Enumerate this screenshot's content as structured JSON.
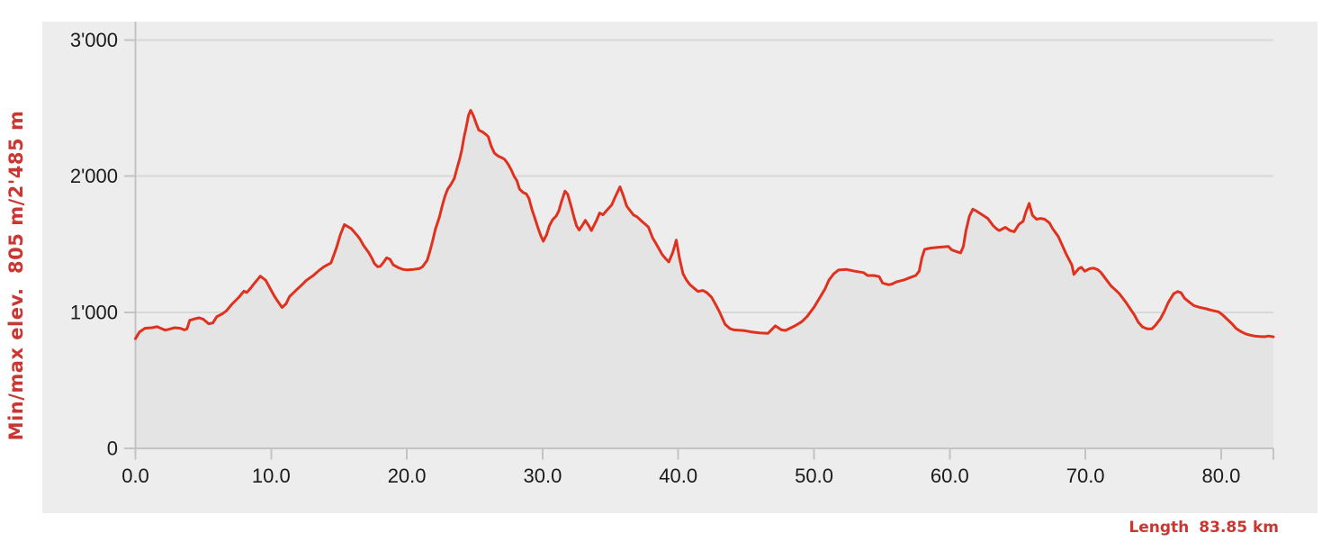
{
  "chart_data": {
    "type": "area",
    "title": "",
    "xlabel": "",
    "ylabel": "Min/max elev.  805 m/2'485 m",
    "footer": {
      "label": "Length",
      "value": "83.85 km"
    },
    "xlim": [
      0,
      83.85
    ],
    "ylim": [
      0,
      3000
    ],
    "grid": "horizontal",
    "legend": "none",
    "x_ticks": {
      "values": [
        0,
        10,
        20,
        30,
        40,
        50,
        60,
        70,
        80
      ],
      "labels": [
        "0.0",
        "10.0",
        "20.0",
        "30.0",
        "40.0",
        "50.0",
        "60.0",
        "70.0",
        "80.0"
      ]
    },
    "y_ticks": {
      "values": [
        0,
        1000,
        2000,
        3000
      ],
      "labels": [
        "0",
        "1'000",
        "2'000",
        "3'000"
      ]
    },
    "min_elevation_m": 805,
    "max_elevation_m": 2485,
    "length_km": 83.85,
    "colors": {
      "line": "#e0311f",
      "fill": "#e4e4e4",
      "panel": "#ededed",
      "grid": "#d8d8d8",
      "axis": "#c3c3c3",
      "tick_text": "#1b1b1b",
      "accent_text": "#cc3632"
    },
    "series_name": "elevation-profile",
    "points": [
      [
        0,
        805
      ],
      [
        0.3,
        855
      ],
      [
        0.7,
        882
      ],
      [
        1.2,
        886
      ],
      [
        1.6,
        893
      ],
      [
        1.9,
        880
      ],
      [
        2.2,
        868
      ],
      [
        2.5,
        875
      ],
      [
        2.9,
        886
      ],
      [
        3.3,
        882
      ],
      [
        3.6,
        870
      ],
      [
        3.8,
        877
      ],
      [
        4.0,
        940
      ],
      [
        4.4,
        952
      ],
      [
        4.7,
        959
      ],
      [
        5.0,
        948
      ],
      [
        5.4,
        915
      ],
      [
        5.7,
        921
      ],
      [
        6.0,
        968
      ],
      [
        6.4,
        988
      ],
      [
        6.7,
        1010
      ],
      [
        7.1,
        1058
      ],
      [
        7.6,
        1108
      ],
      [
        8.0,
        1155
      ],
      [
        8.2,
        1145
      ],
      [
        8.45,
        1172
      ],
      [
        8.7,
        1205
      ],
      [
        9.0,
        1240
      ],
      [
        9.2,
        1265
      ],
      [
        9.6,
        1235
      ],
      [
        9.9,
        1180
      ],
      [
        10.2,
        1125
      ],
      [
        10.4,
        1093
      ],
      [
        10.8,
        1035
      ],
      [
        11.1,
        1062
      ],
      [
        11.35,
        1115
      ],
      [
        11.8,
        1158
      ],
      [
        12.2,
        1195
      ],
      [
        12.6,
        1235
      ],
      [
        13.1,
        1270
      ],
      [
        13.5,
        1305
      ],
      [
        13.9,
        1335
      ],
      [
        14.4,
        1362
      ],
      [
        14.8,
        1470
      ],
      [
        15.1,
        1570
      ],
      [
        15.4,
        1645
      ],
      [
        15.9,
        1615
      ],
      [
        16.3,
        1570
      ],
      [
        16.55,
        1537
      ],
      [
        16.8,
        1492
      ],
      [
        17.2,
        1437
      ],
      [
        17.45,
        1392
      ],
      [
        17.6,
        1360
      ],
      [
        17.85,
        1334
      ],
      [
        18.05,
        1338
      ],
      [
        18.3,
        1370
      ],
      [
        18.5,
        1400
      ],
      [
        18.75,
        1390
      ],
      [
        19.0,
        1348
      ],
      [
        19.4,
        1326
      ],
      [
        19.7,
        1315
      ],
      [
        20.0,
        1311
      ],
      [
        20.5,
        1315
      ],
      [
        20.9,
        1320
      ],
      [
        21.15,
        1334
      ],
      [
        21.5,
        1382
      ],
      [
        21.7,
        1448
      ],
      [
        21.9,
        1526
      ],
      [
        22.1,
        1610
      ],
      [
        22.4,
        1700
      ],
      [
        22.6,
        1780
      ],
      [
        22.8,
        1850
      ],
      [
        23.0,
        1905
      ],
      [
        23.25,
        1940
      ],
      [
        23.5,
        1985
      ],
      [
        23.7,
        2060
      ],
      [
        23.9,
        2130
      ],
      [
        24.05,
        2195
      ],
      [
        24.2,
        2280
      ],
      [
        24.35,
        2350
      ],
      [
        24.55,
        2450
      ],
      [
        24.7,
        2485
      ],
      [
        24.9,
        2446
      ],
      [
        25.1,
        2390
      ],
      [
        25.3,
        2340
      ],
      [
        25.6,
        2324
      ],
      [
        25.85,
        2305
      ],
      [
        26.0,
        2290
      ],
      [
        26.2,
        2225
      ],
      [
        26.45,
        2170
      ],
      [
        26.7,
        2150
      ],
      [
        27.0,
        2136
      ],
      [
        27.2,
        2124
      ],
      [
        27.45,
        2090
      ],
      [
        27.7,
        2046
      ],
      [
        27.9,
        2000
      ],
      [
        28.1,
        1968
      ],
      [
        28.3,
        1906
      ],
      [
        28.55,
        1882
      ],
      [
        28.8,
        1870
      ],
      [
        29.0,
        1836
      ],
      [
        29.2,
        1760
      ],
      [
        29.4,
        1700
      ],
      [
        29.65,
        1625
      ],
      [
        29.85,
        1566
      ],
      [
        30.05,
        1522
      ],
      [
        30.3,
        1570
      ],
      [
        30.5,
        1636
      ],
      [
        30.75,
        1682
      ],
      [
        31.0,
        1706
      ],
      [
        31.2,
        1746
      ],
      [
        31.4,
        1815
      ],
      [
        31.65,
        1890
      ],
      [
        31.85,
        1868
      ],
      [
        32.1,
        1780
      ],
      [
        32.3,
        1704
      ],
      [
        32.5,
        1636
      ],
      [
        32.7,
        1604
      ],
      [
        33.0,
        1650
      ],
      [
        33.15,
        1676
      ],
      [
        33.4,
        1636
      ],
      [
        33.6,
        1600
      ],
      [
        34.0,
        1680
      ],
      [
        34.2,
        1730
      ],
      [
        34.45,
        1716
      ],
      [
        34.7,
        1746
      ],
      [
        35.1,
        1790
      ],
      [
        35.3,
        1836
      ],
      [
        35.5,
        1880
      ],
      [
        35.7,
        1922
      ],
      [
        35.95,
        1858
      ],
      [
        36.2,
        1780
      ],
      [
        36.45,
        1747
      ],
      [
        36.7,
        1714
      ],
      [
        36.95,
        1702
      ],
      [
        37.3,
        1670
      ],
      [
        37.6,
        1644
      ],
      [
        37.8,
        1626
      ],
      [
        38.1,
        1548
      ],
      [
        38.5,
        1480
      ],
      [
        38.8,
        1426
      ],
      [
        39.05,
        1396
      ],
      [
        39.3,
        1370
      ],
      [
        39.6,
        1442
      ],
      [
        39.85,
        1530
      ],
      [
        40.1,
        1392
      ],
      [
        40.35,
        1282
      ],
      [
        40.6,
        1237
      ],
      [
        40.85,
        1204
      ],
      [
        41.1,
        1182
      ],
      [
        41.45,
        1153
      ],
      [
        41.8,
        1160
      ],
      [
        42.1,
        1144
      ],
      [
        42.45,
        1110
      ],
      [
        42.8,
        1048
      ],
      [
        43.05,
        1000
      ],
      [
        43.25,
        955
      ],
      [
        43.45,
        912
      ],
      [
        43.8,
        880
      ],
      [
        44.1,
        870
      ],
      [
        44.9,
        864
      ],
      [
        45.4,
        855
      ],
      [
        46.0,
        848
      ],
      [
        46.6,
        844
      ],
      [
        47.15,
        900
      ],
      [
        47.6,
        870
      ],
      [
        47.9,
        866
      ],
      [
        48.6,
        900
      ],
      [
        49.1,
        930
      ],
      [
        49.5,
        970
      ],
      [
        50.0,
        1036
      ],
      [
        50.4,
        1103
      ],
      [
        50.8,
        1169
      ],
      [
        51.1,
        1236
      ],
      [
        51.45,
        1282
      ],
      [
        51.8,
        1310
      ],
      [
        52.4,
        1314
      ],
      [
        53.0,
        1302
      ],
      [
        53.65,
        1291
      ],
      [
        53.95,
        1270
      ],
      [
        54.4,
        1270
      ],
      [
        54.8,
        1262
      ],
      [
        55.05,
        1215
      ],
      [
        55.5,
        1202
      ],
      [
        55.75,
        1207
      ],
      [
        56.1,
        1224
      ],
      [
        56.6,
        1236
      ],
      [
        57.0,
        1252
      ],
      [
        57.5,
        1270
      ],
      [
        57.75,
        1302
      ],
      [
        57.95,
        1400
      ],
      [
        58.15,
        1462
      ],
      [
        58.6,
        1472
      ],
      [
        59.2,
        1478
      ],
      [
        59.9,
        1484
      ],
      [
        60.15,
        1458
      ],
      [
        60.5,
        1446
      ],
      [
        60.8,
        1436
      ],
      [
        61.0,
        1482
      ],
      [
        61.2,
        1600
      ],
      [
        61.45,
        1706
      ],
      [
        61.7,
        1758
      ],
      [
        62.0,
        1742
      ],
      [
        62.3,
        1723
      ],
      [
        62.8,
        1690
      ],
      [
        63.2,
        1636
      ],
      [
        63.45,
        1613
      ],
      [
        63.65,
        1600
      ],
      [
        64.1,
        1624
      ],
      [
        64.45,
        1600
      ],
      [
        64.75,
        1592
      ],
      [
        65.1,
        1646
      ],
      [
        65.4,
        1668
      ],
      [
        65.6,
        1734
      ],
      [
        65.85,
        1800
      ],
      [
        66.1,
        1712
      ],
      [
        66.4,
        1684
      ],
      [
        66.7,
        1690
      ],
      [
        67.0,
        1684
      ],
      [
        67.35,
        1656
      ],
      [
        67.6,
        1612
      ],
      [
        68.0,
        1556
      ],
      [
        68.3,
        1490
      ],
      [
        68.6,
        1424
      ],
      [
        69.0,
        1346
      ],
      [
        69.15,
        1278
      ],
      [
        69.5,
        1320
      ],
      [
        69.7,
        1330
      ],
      [
        69.95,
        1302
      ],
      [
        70.3,
        1320
      ],
      [
        70.6,
        1324
      ],
      [
        70.9,
        1313
      ],
      [
        71.15,
        1291
      ],
      [
        71.4,
        1258
      ],
      [
        71.65,
        1225
      ],
      [
        71.9,
        1191
      ],
      [
        72.15,
        1169
      ],
      [
        72.5,
        1136
      ],
      [
        72.75,
        1103
      ],
      [
        73.0,
        1070
      ],
      [
        73.3,
        1025
      ],
      [
        73.6,
        981
      ],
      [
        73.9,
        926
      ],
      [
        74.2,
        892
      ],
      [
        74.55,
        877
      ],
      [
        74.9,
        878
      ],
      [
        75.15,
        903
      ],
      [
        75.5,
        948
      ],
      [
        75.8,
        1003
      ],
      [
        76.1,
        1070
      ],
      [
        76.5,
        1136
      ],
      [
        76.8,
        1152
      ],
      [
        77.05,
        1142
      ],
      [
        77.3,
        1103
      ],
      [
        77.7,
        1070
      ],
      [
        78.0,
        1048
      ],
      [
        78.4,
        1036
      ],
      [
        78.9,
        1025
      ],
      [
        79.3,
        1014
      ],
      [
        79.8,
        1003
      ],
      [
        80.1,
        981
      ],
      [
        80.45,
        948
      ],
      [
        80.8,
        915
      ],
      [
        81.1,
        881
      ],
      [
        81.45,
        858
      ],
      [
        81.8,
        841
      ],
      [
        82.1,
        832
      ],
      [
        82.45,
        825
      ],
      [
        82.8,
        822
      ],
      [
        83.2,
        820
      ],
      [
        83.5,
        825
      ],
      [
        83.85,
        819
      ]
    ]
  }
}
